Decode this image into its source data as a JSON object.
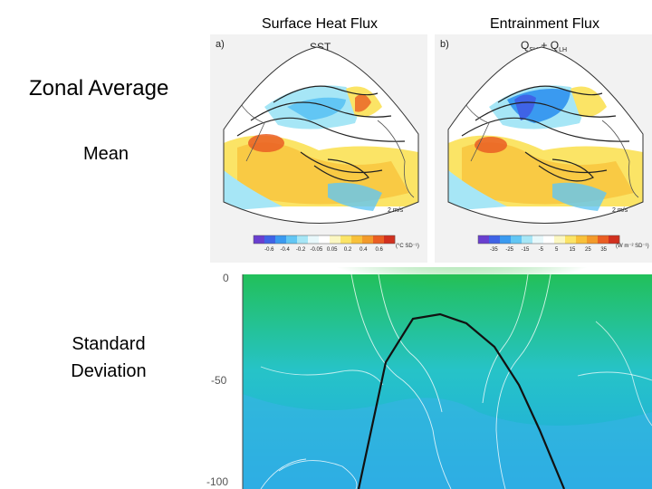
{
  "columns": {
    "surface_heat_flux": "Surface Heat Flux",
    "entrainment_flux": "Entrainment Flux"
  },
  "rows": {
    "zonal_average": "Zonal Average",
    "mean": "Mean",
    "standard_deviation_line1": "Standard",
    "standard_deviation_line2": "Deviation"
  },
  "panel_a": {
    "tag": "a)",
    "title": "SST",
    "vector_scale": "2 m/s",
    "colorbar_ticks": [
      "-0.6",
      "-0.4",
      "-0.2",
      "-0.05",
      "0.05",
      "0.2",
      "0.4",
      "0.6"
    ],
    "colorbar_unit": "(°C SD⁻¹)"
  },
  "panel_b": {
    "tag": "b)",
    "title": "Q",
    "sub1": "SH",
    "plus": " + Q",
    "sub2": "LH",
    "vector_scale": "2 m/s",
    "colorbar_ticks": [
      "-35",
      "-25",
      "-15",
      "-5",
      "5",
      "15",
      "25",
      "35"
    ],
    "colorbar_unit": "(W m⁻² SD⁻¹)"
  },
  "bottom_panel": {
    "y_ticks": [
      "0",
      "-50",
      "-100"
    ]
  },
  "colors": {
    "colorbar_a": [
      "#6a3fd0",
      "#3f63e6",
      "#3a9af0",
      "#62c6f4",
      "#a6e6f6",
      "#e8f8fb",
      "#ffffff",
      "#fbf7c2",
      "#fbe466",
      "#f8c13a",
      "#f39a2a",
      "#ea5e23",
      "#d1301f"
    ],
    "colorbar_b": [
      "#6a3fd0",
      "#3f63e6",
      "#3a9af0",
      "#62c6f4",
      "#a6e6f6",
      "#e8f8fb",
      "#ffffff",
      "#fbf7c2",
      "#fbe466",
      "#f8c13a",
      "#f39a2a",
      "#ea5e23",
      "#d1301f"
    ]
  }
}
